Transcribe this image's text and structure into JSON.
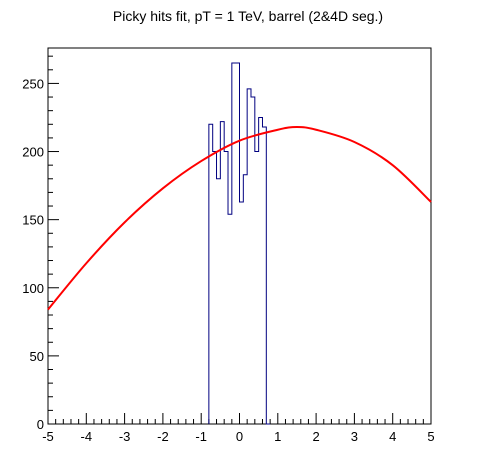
{
  "chart_data": {
    "type": "histogram",
    "title": "Picky hits fit, pT = 1 TeV, barrel (2&4D seg.)",
    "xlabel": "",
    "ylabel": "",
    "xlim": [
      -5,
      5
    ],
    "ylim": [
      0,
      276
    ],
    "x_ticks": [
      "-5",
      "-4",
      "-3",
      "-2",
      "-1",
      "0",
      "1",
      "2",
      "3",
      "4",
      "5"
    ],
    "y_ticks": [
      "0",
      "50",
      "100",
      "150",
      "200",
      "250"
    ],
    "histogram": {
      "name": "",
      "color": "#000080",
      "bin_width": 0.1,
      "bins": [
        {
          "x0": -0.8,
          "value": 220
        },
        {
          "x0": -0.7,
          "value": 200
        },
        {
          "x0": -0.6,
          "value": 180
        },
        {
          "x0": -0.5,
          "value": 222
        },
        {
          "x0": -0.4,
          "value": 200
        },
        {
          "x0": -0.3,
          "value": 154
        },
        {
          "x0": -0.2,
          "value": 265
        },
        {
          "x0": -0.1,
          "value": 265
        },
        {
          "x0": 0.0,
          "value": 163
        },
        {
          "x0": 0.1,
          "value": 183
        },
        {
          "x0": 0.2,
          "value": 246
        },
        {
          "x0": 0.3,
          "value": 240
        },
        {
          "x0": 0.4,
          "value": 200
        },
        {
          "x0": 0.5,
          "value": 225
        },
        {
          "x0": 0.6,
          "value": 218
        },
        {
          "x0": 0.7,
          "value": 0
        }
      ]
    },
    "fit": {
      "name": "",
      "color": "#ff0000",
      "x": [
        -5,
        -4,
        -3,
        -2,
        -1,
        0,
        1,
        1.5,
        2,
        3,
        4,
        5
      ],
      "y": [
        84,
        118,
        148,
        173,
        193,
        208,
        216,
        218,
        216,
        207,
        190,
        163
      ]
    }
  }
}
